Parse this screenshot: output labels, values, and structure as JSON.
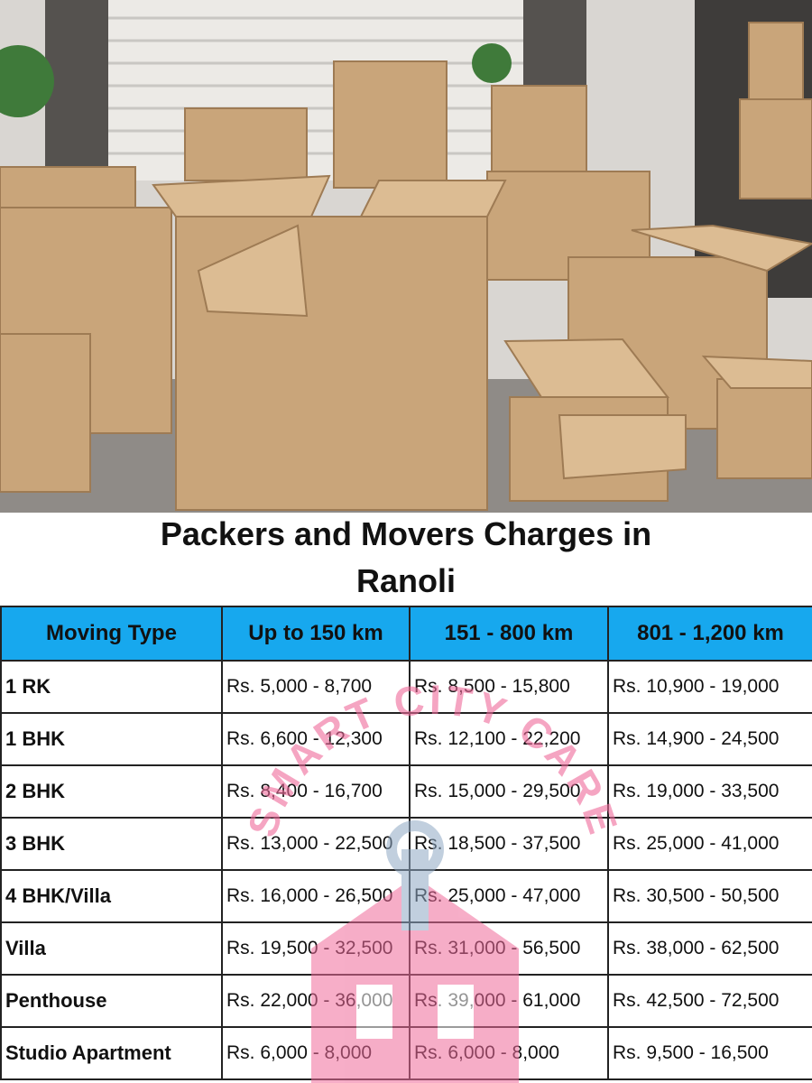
{
  "title": "Packers and Movers Charges in Ranoli",
  "table": {
    "header": [
      "Moving Type",
      "Up to 150 km",
      "151 - 800 km",
      "801 - 1,200 km"
    ],
    "rows": [
      [
        "1 RK",
        "Rs. 5,000 - 8,700",
        "Rs. 8,500 - 15,800",
        "Rs. 10,900 - 19,000"
      ],
      [
        "1 BHK",
        "Rs. 6,600 - 12,300",
        "Rs. 12,100 - 22,200",
        "Rs. 14,900 - 24,500"
      ],
      [
        "2 BHK",
        "Rs. 8,400 - 16,700",
        "Rs. 15,000 - 29,500",
        "Rs. 19,000 - 33,500"
      ],
      [
        "3 BHK",
        "Rs. 13,000 - 22,500",
        "Rs. 18,500 - 37,500",
        "Rs. 25,000 - 41,000"
      ],
      [
        "4 BHK/Villa",
        "Rs. 16,000 - 26,500",
        "Rs. 25,000 - 47,000",
        "Rs. 30,500 - 50,500"
      ],
      [
        "Villa",
        "Rs. 19,500 - 32,500",
        "Rs. 31,000 - 56,500",
        "Rs. 38,000 - 62,500"
      ],
      [
        "Penthouse",
        "Rs. 22,000 - 36,000",
        "Rs. 39,000 - 61,000",
        "Rs. 42,500 - 72,500"
      ],
      [
        "Studio Apartment",
        "Rs. 6,000 - 8,000",
        "Rs. 6,000 - 8,000",
        "Rs. 9,500 - 16,500"
      ]
    ]
  },
  "watermark": "SMART CITY CARE"
}
